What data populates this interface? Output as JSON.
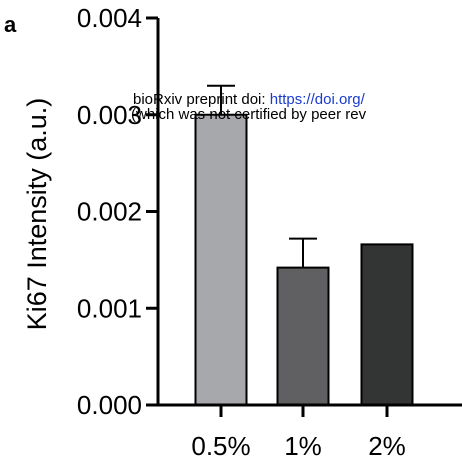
{
  "panel_label": "a",
  "banner": {
    "line1_prefix": "bioRxiv preprint doi: ",
    "line1_link": "https://doi.org/",
    "line2": "(which was not certified by peer rev"
  },
  "colors": {
    "bars": [
      "#a7a8ab",
      "#606062",
      "#333534"
    ],
    "axis": "#000000",
    "link": "#1a3ccc"
  },
  "chart_data": {
    "type": "bar",
    "title": "",
    "xlabel": "",
    "ylabel": "Ki67 Intensity (a.u.)",
    "categories": [
      "0.5%",
      "1%",
      "2%"
    ],
    "values": [
      0.003,
      0.00142,
      0.00166
    ],
    "error_upper": [
      0.0003,
      0.0003,
      0
    ],
    "ylim": [
      0,
      0.004
    ],
    "yticks": [
      "0.000",
      "0.001",
      "0.002",
      "0.003",
      "0.004"
    ],
    "grid": false
  }
}
